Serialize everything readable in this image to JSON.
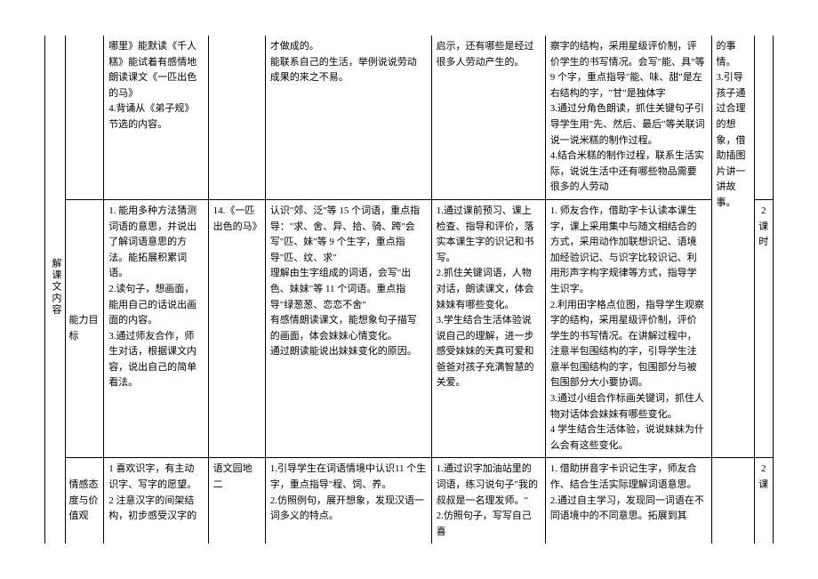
{
  "sidecol": {
    "heading": "解课文内容"
  },
  "row1": {
    "label": "",
    "c2": "哪里》能默读《千人糕》能试着有感情地朗读课文《一匹出色的马》\n4.背诵从《弟子规》节选的内容。",
    "c3": "",
    "c4": "才做成的。\n能联系自己的生活，举例说说劳动成果的来之不易。",
    "c5": "启示，还有哪些是经过很多人劳动产生的。",
    "c6": "察字的结构，采用星级评价制，评价学生的书写情况。会写\"能、具\"等 9 个字，重点指导\"能、味、甜\"是左右结构的字，\"甘\"是独体字\n3.通过分角色朗读，抓住关键句子引导学生用\"先、然后、最后\"等关联词说一说米糕的制作过程。\n4.结合米糕的制作过程，联系生活实际，说说生活中还有哪些物品需要很多的人劳动",
    "c7": "的事情。\n3.引导孩子通过合理的想象，借助插图片讲一讲故事。",
    "c8": ""
  },
  "row2": {
    "label": "能力目标",
    "c2": "1. 能用多种方法猜测词语的意思，并说出了解词语意思的方法。能拓展积累词语。\n2.读句子，想画面，能用自己的话说出画面的内容。\n3.通过师友合作，师生对话，根据课文内容，说出自己的简单看法。",
    "c3": "14.《一匹出色的马》",
    "c4": "认识\"郊、泛\"等 15 个词语，重点指导：\"求、舍、异、拾、骑、跨\"会写\"匹、妹\"等 9 个生字，重点指导\"匹、纹、求\"\n理解由生字组成的词语，会写\"出色、妹妹\"等 11 个词语。重点指导\"绿葱葱、恋恋不舍\"\n有感情朗读课文，能想象句子描写的画面，体会妹妹心情变化。\n通过朗读能说出妹妹变化的原因。",
    "c5": "1.通过课前预习、课上检查、指导和评价，落实本课生字的识记和书写。\n2.抓住关键词语，人物对话，朗读课文，体会妹妹有哪些变化。\n3.学生结合生活体验说说自己的理解，进一步感受妹妹的天真可爱和爸爸对孩子充满智慧的关爱。",
    "c6": "1. 师友合作，借助字卡认读本课生字，课上采用集中与随文相结合的方式，采用动作加联想识记、语境加经验识记、与识字比较识记、利用形声字构字规律等方式，指导学生识字。\n2.利用田字格点位图，指导学生观察字的结构，采用星级评价制，评价学生的书写情况。在讲解过程中，注意半包围结构的字，引导学生注意半包围结构的字，包围部分与被包围部分大小要协调。\n3.通过小组合作标画关键词，抓住人物对话体会妹妹有哪些变化。\n4 学生结合生活体验，说说妹妹为什么会有这些变化。",
    "c7": "",
    "c8": "2\n课\n时"
  },
  "row3": {
    "label": "情感态度与价值观",
    "c2": "1 喜欢识字，有主动识字、写字的愿望。\n2 注意汉字的间架结构，初步感受汉字的",
    "c3": "语文园地二",
    "c4": "1.引导学生在词语情境中认识11 个生字，重点指导\"程、饲、养。\n2.仿照例句，展开想象，发现汉语一词多义的特点。",
    "c5": "1.通过识字加油站里的词语，练习说句子\"我的叔叔是一名理发师。\"\n2.仿照句子，写写自己喜",
    "c6": "1. 借助拼音字卡识记生字，师友合作、结合生活实际理解词语意思。\n2.通过自主学习，发现同一词语在不同语境中的不同意思。拓展到其",
    "c7": "",
    "c8": "2\n课"
  },
  "colwidths": {
    "c1": 22,
    "clabel": 40,
    "c2": 110,
    "c3": 60,
    "c4": 175,
    "c5": 120,
    "c6": 175,
    "c7": 45,
    "c8": 20
  }
}
